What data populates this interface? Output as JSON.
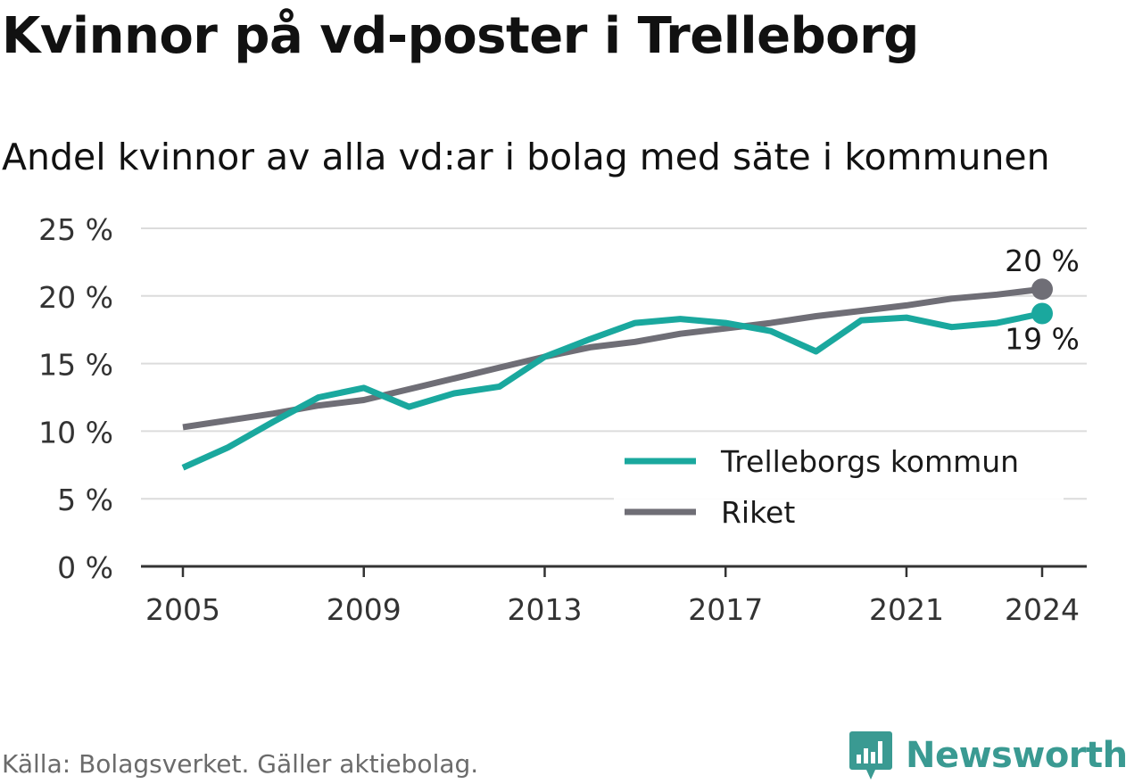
{
  "title": "Kvinnor på vd-poster i Trelleborg",
  "subtitle": "Andel kvinnor av alla vd:ar i bolag med säte i kommunen",
  "source": "Källa: Bolagsverket. Gäller aktiebolag.",
  "brand": {
    "name": "Newsworthy",
    "icon": "newsworthy-logo-icon",
    "color": "#3a9a92"
  },
  "chart_data": {
    "type": "line",
    "x": [
      2005,
      2006,
      2007,
      2008,
      2009,
      2010,
      2011,
      2012,
      2013,
      2014,
      2015,
      2016,
      2017,
      2018,
      2019,
      2020,
      2021,
      2022,
      2023,
      2024
    ],
    "series": [
      {
        "name": "Trelleborgs kommun",
        "color": "#1aa89e",
        "values": [
          7.3,
          8.8,
          10.7,
          12.5,
          13.2,
          11.8,
          12.8,
          13.3,
          15.5,
          16.8,
          18.0,
          18.3,
          18.0,
          17.4,
          15.9,
          18.2,
          18.4,
          17.7,
          18.0,
          18.7
        ],
        "end_label": "19 %"
      },
      {
        "name": "Riket",
        "color": "#6f6e76",
        "values": [
          10.3,
          10.8,
          11.3,
          11.9,
          12.3,
          13.1,
          13.9,
          14.7,
          15.5,
          16.2,
          16.6,
          17.2,
          17.6,
          18.0,
          18.5,
          18.9,
          19.3,
          19.8,
          20.1,
          20.5
        ],
        "end_label": "20 %"
      }
    ],
    "ylim": [
      0,
      25
    ],
    "yticks": [
      0,
      5,
      10,
      15,
      20,
      25
    ],
    "ytick_labels": [
      "0 %",
      "5 %",
      "10 %",
      "15 %",
      "20 %",
      "25 %"
    ],
    "xticks": [
      2005,
      2009,
      2013,
      2017,
      2021,
      2024
    ],
    "xtick_labels": [
      "2005",
      "2009",
      "2013",
      "2017",
      "2021",
      "2024"
    ],
    "xlabel": "",
    "ylabel": "",
    "grid": true,
    "legend_position": "bottom-right",
    "colors": {
      "grid": "#dcdcdc",
      "axis": "#333333",
      "tick_text": "#333333"
    }
  }
}
